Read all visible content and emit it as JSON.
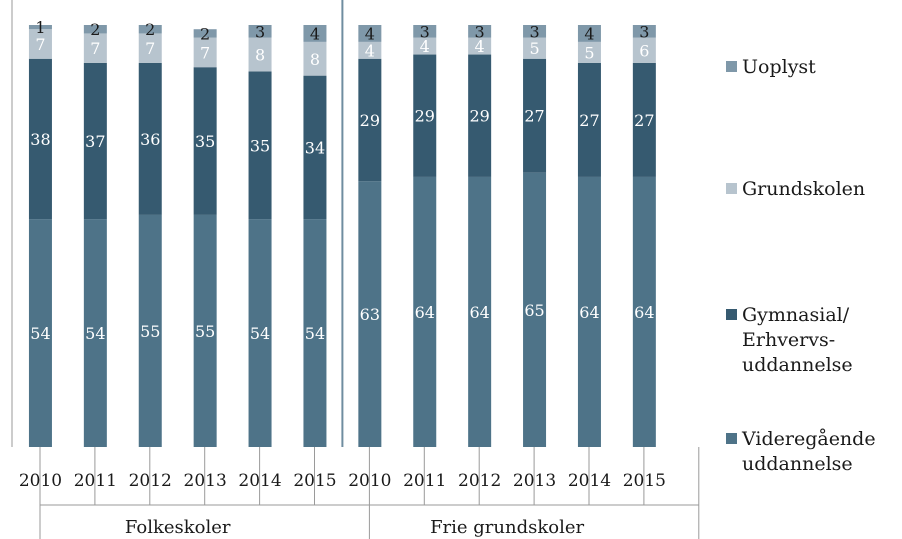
{
  "chart_data": {
    "type": "bar",
    "stacked": true,
    "percent_stacked": true,
    "groups": [
      {
        "label": "Folkeskoler",
        "categories": [
          "2010",
          "2011",
          "2012",
          "2013",
          "2014",
          "2015"
        ]
      },
      {
        "label": "Frie grundskoler",
        "categories": [
          "2010",
          "2011",
          "2012",
          "2013",
          "2014",
          "2015"
        ]
      }
    ],
    "series": [
      {
        "name": "Videregående uddannelse",
        "color": "#4E7388",
        "values": [
          54,
          54,
          55,
          55,
          54,
          54,
          63,
          64,
          64,
          65,
          64,
          64
        ]
      },
      {
        "name": "Gymnasial/ Erhvervs- uddannelse",
        "color": "#365A70",
        "values": [
          38,
          37,
          36,
          35,
          35,
          34,
          29,
          29,
          29,
          27,
          27,
          27
        ]
      },
      {
        "name": "Grundskolen",
        "color": "#B7C4CE",
        "values": [
          7,
          7,
          7,
          7,
          8,
          8,
          4,
          4,
          4,
          5,
          5,
          6
        ]
      },
      {
        "name": "Uoplyst",
        "color": "#7F98A9",
        "values": [
          1,
          2,
          2,
          2,
          3,
          4,
          4,
          3,
          3,
          3,
          4,
          3
        ]
      }
    ],
    "legend": {
      "position": "right",
      "entries": [
        {
          "lines": [
            "Uoplyst"
          ],
          "color": "#7F98A9"
        },
        {
          "lines": [
            "Grundskolen"
          ],
          "color": "#B7C4CE"
        },
        {
          "lines": [
            "Gymnasial/",
            "Erhvervs-",
            "uddannelse"
          ],
          "color": "#365A70"
        },
        {
          "lines": [
            "Videregående",
            "uddannelse"
          ],
          "color": "#4E7388"
        }
      ]
    },
    "ylim": [
      0,
      100
    ],
    "grid": false
  }
}
